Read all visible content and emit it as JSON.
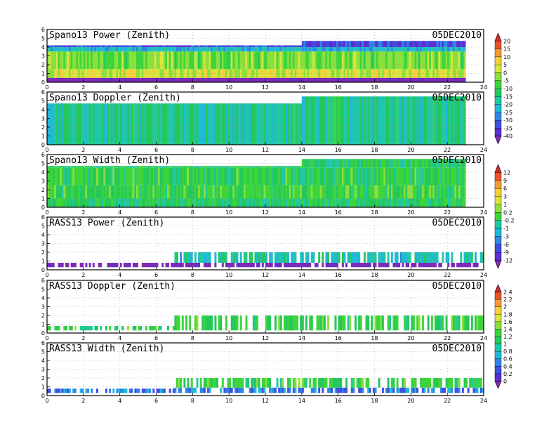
{
  "figure": {
    "date": "05DEC2010"
  },
  "axes": {
    "x_ticks": [
      "0",
      "2",
      "4",
      "6",
      "8",
      "10",
      "12",
      "14",
      "16",
      "18",
      "20",
      "22",
      "24"
    ],
    "y_ticks": [
      "0",
      "1",
      "2",
      "3",
      "4",
      "5",
      "6"
    ],
    "xlim": [
      0,
      24
    ],
    "ylim": [
      0,
      6
    ],
    "grid": true
  },
  "panels": [
    {
      "title": "Spano13 Power (Zenith)",
      "date": "05DEC2010"
    },
    {
      "title": "Spano13 Doppler (Zenith)",
      "date": "05DEC2010"
    },
    {
      "title": "Spano13 Width (Zenith)",
      "date": "05DEC2010"
    },
    {
      "title": "RASS13 Power (Zenith)",
      "date": "05DEC2010"
    },
    {
      "title": "RASS13 Doppler (Zenith)",
      "date": "05DEC2010"
    },
    {
      "title": "RASS13 Width (Zenith)",
      "date": "05DEC2010"
    }
  ],
  "colorbars": [
    {
      "labels": [
        "20",
        "15",
        "10",
        "5",
        "0",
        "-5",
        "-10",
        "-15",
        "-20",
        "-25",
        "-30",
        "-35",
        "-40"
      ]
    },
    {
      "labels": [
        "12",
        "9",
        "6",
        "3",
        "1",
        "0.2",
        "-0.2",
        "-1",
        "-3",
        "-6",
        "-9",
        "-12"
      ]
    },
    {
      "labels": [
        "2.4",
        "2.2",
        "2",
        "1.8",
        "1.6",
        "1.4",
        "1.2",
        "1",
        "0.8",
        "0.6",
        "0.4",
        "0.2",
        "0"
      ]
    }
  ],
  "colors": {
    "scale": [
      "#7d2bb8",
      "#5b2fd0",
      "#3f4fe0",
      "#2f86e8",
      "#21b9d8",
      "#21c8a6",
      "#25c85a",
      "#3dd63a",
      "#8be03c",
      "#d8e63d",
      "#f5cf3c",
      "#f59a33",
      "#e8522c",
      "#d12a2a"
    ]
  },
  "chart_data": [
    {
      "type": "heatmap",
      "title": "Spano13 Power (Zenith)",
      "annotation": "05DEC2010",
      "x_range": [
        0,
        24
      ],
      "y_range": [
        0,
        6
      ],
      "colorbar": [
        -40,
        20
      ],
      "data_extent": {
        "x": [
          0,
          23
        ],
        "y_max_before_14": 4.2,
        "y_max_after_14": 4.7
      },
      "bands": [
        {
          "y": [
            0,
            0.5
          ],
          "value": -40
        },
        {
          "y": [
            0.5,
            1.5
          ],
          "value": 0
        },
        {
          "y": [
            1.5,
            3.5
          ],
          "value": -5
        },
        {
          "y": [
            3.5,
            4.0
          ],
          "value": -20
        },
        {
          "y": [
            4.0,
            4.7
          ],
          "value": -30
        }
      ]
    },
    {
      "type": "heatmap",
      "title": "Spano13 Doppler (Zenith)",
      "annotation": "05DEC2010",
      "x_range": [
        0,
        24
      ],
      "y_range": [
        0,
        6
      ],
      "colorbar": [
        -40,
        20
      ],
      "data_extent": {
        "x": [
          0,
          23
        ],
        "y_max_before_14": 4.7,
        "y_max_after_14": 5.5
      },
      "bands": [
        {
          "y": [
            0,
            5.5
          ],
          "value": -15
        }
      ]
    },
    {
      "type": "heatmap",
      "title": "Spano13 Width (Zenith)",
      "annotation": "05DEC2010",
      "x_range": [
        0,
        24
      ],
      "y_range": [
        0,
        6
      ],
      "colorbar": [
        -12,
        12
      ],
      "data_extent": {
        "x": [
          0,
          23
        ],
        "y_max_before_14": 4.7,
        "y_max_after_14": 5.5
      },
      "bands": [
        {
          "y": [
            0,
            1.0
          ],
          "value": -1
        },
        {
          "y": [
            1.0,
            2.5
          ],
          "value": 0.2
        },
        {
          "y": [
            2.5,
            4.5
          ],
          "value": -0.2
        },
        {
          "y": [
            4.5,
            5.5
          ],
          "value": -1
        }
      ]
    },
    {
      "type": "heatmap",
      "title": "RASS13 Power (Zenith)",
      "annotation": "05DEC2010",
      "x_range": [
        0,
        24
      ],
      "y_range": [
        0,
        6
      ],
      "colorbar": [
        -12,
        12
      ],
      "data_extent": {
        "x": [
          0,
          24
        ],
        "y": [
          0.3,
          2.0
        ]
      },
      "bands": [
        {
          "y": [
            0.3,
            0.8
          ],
          "value": -12
        },
        {
          "y": [
            0.8,
            2.0
          ],
          "value": -3
        }
      ]
    },
    {
      "type": "heatmap",
      "title": "RASS13 Doppler (Zenith)",
      "annotation": "05DEC2010",
      "x_range": [
        0,
        24
      ],
      "y_range": [
        0,
        6
      ],
      "colorbar": [
        0,
        2.4
      ],
      "data_extent": {
        "x": [
          0,
          24
        ],
        "y": [
          0.3,
          2.0
        ]
      },
      "bands": [
        {
          "y": [
            0.3,
            2.0
          ],
          "value": 1.2
        }
      ]
    },
    {
      "type": "heatmap",
      "title": "RASS13 Width (Zenith)",
      "annotation": "05DEC2010",
      "x_range": [
        0,
        24
      ],
      "y_range": [
        0,
        6
      ],
      "colorbar": [
        0,
        2.4
      ],
      "data_extent": {
        "x": [
          0,
          24
        ],
        "y": [
          0.3,
          2.0
        ]
      },
      "bands": [
        {
          "y": [
            0.3,
            0.9
          ],
          "value": 0.6
        },
        {
          "y": [
            0.9,
            2.0
          ],
          "value": 1.2
        }
      ]
    }
  ]
}
